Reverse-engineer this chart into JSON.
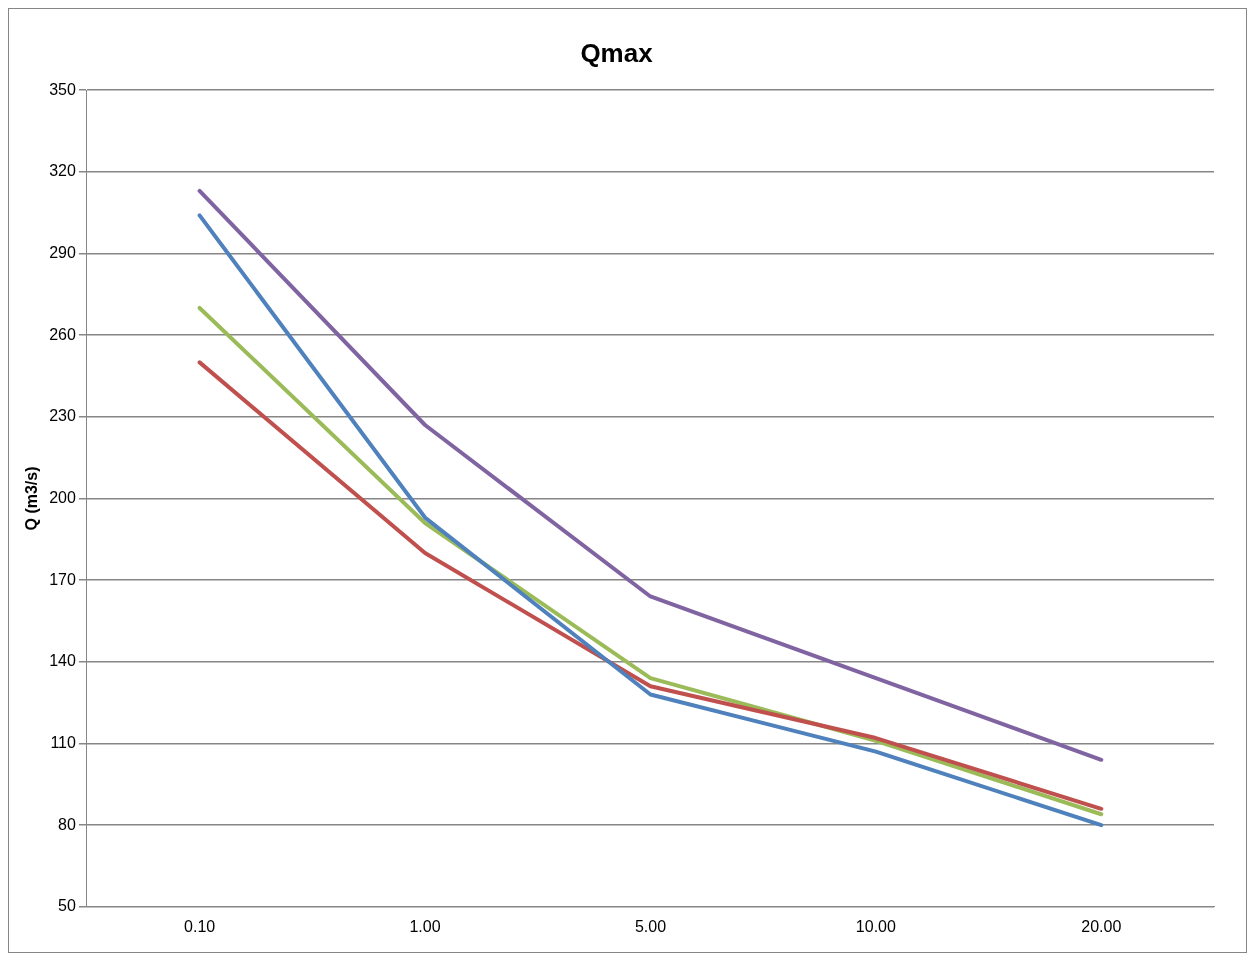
{
  "chart_data": {
    "type": "line",
    "title": "Qmax",
    "ylabel": "Q (m3/s)",
    "categories": [
      "0.10",
      "1.00",
      "5.00",
      "10.00",
      "20.00"
    ],
    "series": [
      {
        "color": "#4f81bd",
        "values": [
          304,
          193,
          128,
          107,
          80
        ]
      },
      {
        "color": "#c0504d",
        "values": [
          250,
          180,
          131,
          112,
          86
        ]
      },
      {
        "color": "#9bbb59",
        "values": [
          270,
          191,
          134,
          111,
          84
        ]
      },
      {
        "color": "#8064a2",
        "values": [
          313,
          227,
          164,
          134,
          104
        ]
      }
    ],
    "ylim": [
      50,
      350
    ],
    "yticks": [
      50,
      80,
      110,
      140,
      170,
      200,
      230,
      260,
      290,
      320,
      350
    ],
    "grid": "y",
    "legend": false,
    "marker": "none",
    "line_style": "solid"
  }
}
